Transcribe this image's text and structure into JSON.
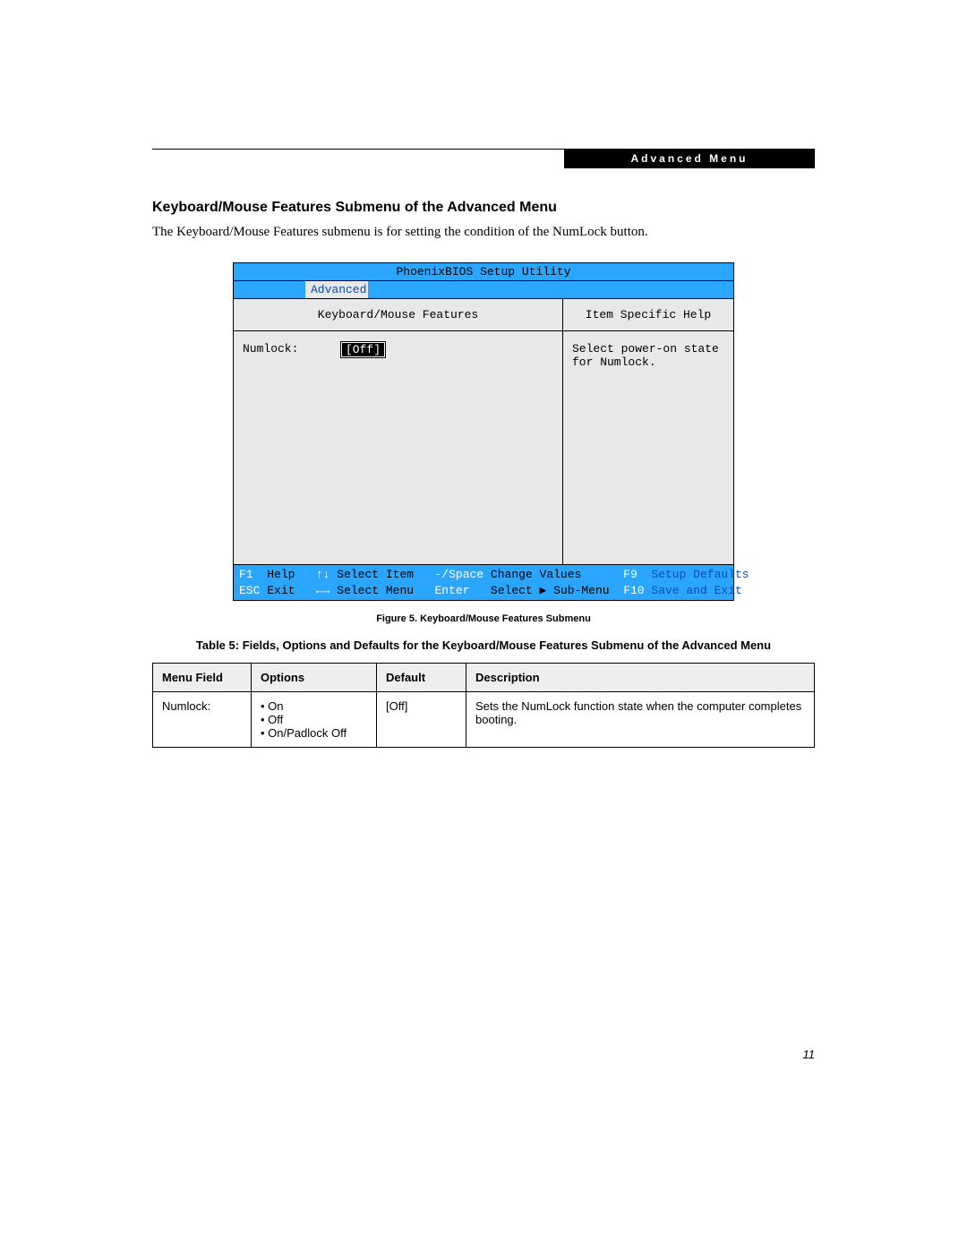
{
  "header": {
    "badge": "Advanced Menu"
  },
  "section": {
    "title": "Keyboard/Mouse Features Submenu of the Advanced Menu",
    "intro": "The Keyboard/Mouse Features submenu is for setting the condition of the NumLock button."
  },
  "bios": {
    "title": "PhoenixBIOS Setup Utility",
    "active_tab": "Advanced",
    "left_title": "Keyboard/Mouse Features",
    "right_title": "Item Specific Help",
    "field_label": "Numlock:",
    "field_value": "[Off]",
    "help_line1": "Select power-on state",
    "help_line2": "for Numlock.",
    "footer": {
      "f1": "F1",
      "help": "Help",
      "updown": "↑↓",
      "select_item": "Select Item",
      "minus_space": "-/Space",
      "change_values": "Change Values",
      "f9": "F9",
      "setup_defaults": "Setup Defaults",
      "esc": "ESC",
      "exit": "Exit",
      "leftright": "←→",
      "select_menu": "Select Menu",
      "enter": "Enter",
      "select_submenu": "Select ▶ Sub-Menu",
      "f10": "F10",
      "save_exit": "Save and Exit"
    },
    "colors": {
      "tab_bg": "#2aa6ff",
      "panel_bg": "#e8e8e8",
      "link_blue": "#0a4db0"
    }
  },
  "figure_caption": "Figure 5.  Keyboard/Mouse Features Submenu",
  "table": {
    "title": "Table 5: Fields, Options and Defaults for the Keyboard/Mouse Features Submenu of the Advanced Menu",
    "headers": {
      "field": "Menu Field",
      "options": "Options",
      "default": "Default",
      "description": "Description"
    },
    "row": {
      "field": "Numlock:",
      "options": [
        "On",
        "Off",
        "On/Padlock Off"
      ],
      "default": "[Off]",
      "description": "Sets the NumLock function state when the computer completes booting."
    }
  },
  "page_number": "11"
}
